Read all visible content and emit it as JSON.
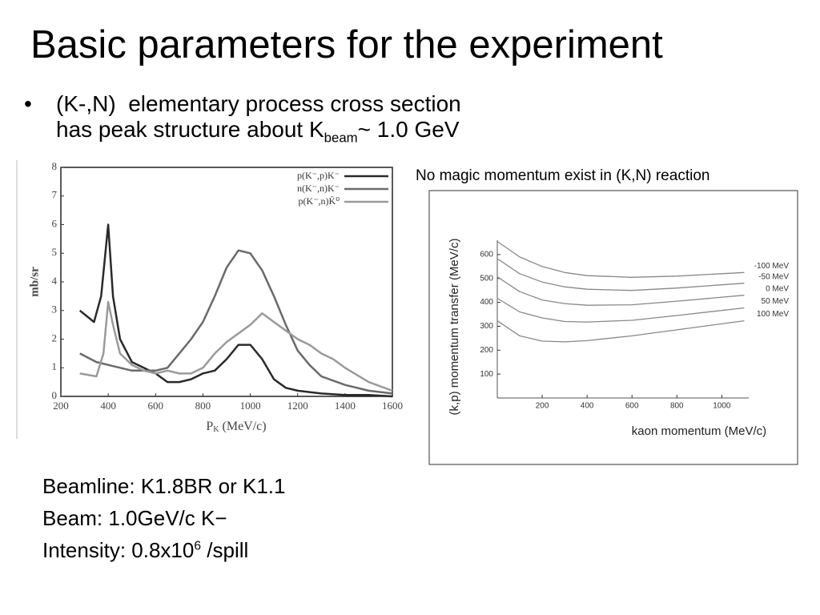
{
  "slide": {
    "title": "Basic parameters for the experiment",
    "bullet_line1": "(K-,N)  elementary process cross section",
    "bullet_line2_parts": [
      "has peak structure about K",
      "beam",
      "~ 1.0 GeV"
    ],
    "info_lines": [
      "Beamline: K1.8BR or K1.1",
      "Beam: 1.0GeV/c K−"
    ],
    "intensity_parts": [
      "Intensity: 0.8x10",
      "6",
      " /spill"
    ]
  },
  "chart_data": [
    {
      "type": "line",
      "ylabel": "mb/sr",
      "xlabel_parts": [
        "P",
        "K",
        " (MeV/c)"
      ],
      "xlim": [
        200,
        1600
      ],
      "ylim": [
        0,
        8
      ],
      "xticks": [
        200,
        400,
        600,
        800,
        1000,
        1200,
        1400,
        1600
      ],
      "yticks": [
        0,
        1,
        2,
        3,
        4,
        5,
        6,
        7,
        8
      ],
      "grid": false,
      "legend": "upper right",
      "series": [
        {
          "name": "p(K⁻,p)K⁻",
          "color": "#2a2a2a",
          "x": [
            280,
            340,
            370,
            400,
            420,
            450,
            500,
            550,
            600,
            650,
            700,
            750,
            800,
            850,
            900,
            950,
            1000,
            1050,
            1100,
            1150,
            1200,
            1300,
            1400,
            1500,
            1600
          ],
          "values": [
            3.0,
            2.6,
            3.5,
            6.0,
            3.5,
            2.0,
            1.2,
            1.0,
            0.8,
            0.5,
            0.5,
            0.6,
            0.8,
            0.9,
            1.3,
            1.8,
            1.8,
            1.3,
            0.6,
            0.3,
            0.2,
            0.1,
            0.05,
            0.05,
            0
          ]
        },
        {
          "name": "n(K⁻,n)K⁻",
          "color": "#6a6a6a",
          "x": [
            280,
            350,
            400,
            500,
            600,
            650,
            700,
            750,
            800,
            850,
            900,
            950,
            1000,
            1050,
            1100,
            1150,
            1200,
            1250,
            1300,
            1400,
            1500,
            1600
          ],
          "values": [
            1.5,
            1.2,
            1.1,
            0.9,
            0.9,
            1.0,
            1.5,
            2.0,
            2.6,
            3.5,
            4.5,
            5.1,
            5.0,
            4.4,
            3.5,
            2.5,
            1.6,
            1.1,
            0.7,
            0.4,
            0.2,
            0.1
          ]
        },
        {
          "name": "p(K⁻,n)K̄⁰",
          "color": "#9a9a9a",
          "x": [
            280,
            350,
            380,
            400,
            420,
            450,
            500,
            550,
            600,
            650,
            700,
            750,
            800,
            850,
            900,
            950,
            1000,
            1050,
            1100,
            1150,
            1200,
            1250,
            1300,
            1350,
            1400,
            1500,
            1600
          ],
          "values": [
            0.8,
            0.7,
            1.5,
            3.3,
            2.5,
            1.5,
            1.1,
            0.9,
            0.8,
            0.9,
            0.8,
            0.8,
            1.0,
            1.5,
            1.9,
            2.2,
            2.5,
            2.9,
            2.6,
            2.3,
            2.0,
            1.8,
            1.5,
            1.3,
            1.0,
            0.5,
            0.2
          ]
        }
      ]
    },
    {
      "type": "line",
      "title": "No magic momentum exist in (K,N) reaction",
      "ylabel": "(k,p) momentum transfer (MeV/c)",
      "xlabel": "kaon momentum (MeV/c)",
      "xlim": [
        0,
        1120
      ],
      "ylim": [
        0,
        660
      ],
      "xticks": [
        200,
        400,
        600,
        800,
        1000
      ],
      "yticks": [
        100,
        200,
        300,
        400,
        500,
        600
      ],
      "grid": false,
      "x": [
        0,
        100,
        200,
        300,
        400,
        600,
        800,
        1100
      ],
      "series": [
        {
          "name": "-100 MeV",
          "color": "#888888",
          "values": [
            655,
            590,
            550,
            525,
            512,
            505,
            510,
            525
          ]
        },
        {
          "name": "-50 MeV",
          "color": "#888888",
          "values": [
            583,
            520,
            485,
            465,
            455,
            450,
            460,
            480
          ]
        },
        {
          "name": "0 MeV",
          "color": "#888888",
          "values": [
            507,
            445,
            410,
            395,
            388,
            390,
            405,
            430
          ]
        },
        {
          "name": "50 MeV",
          "color": "#888888",
          "values": [
            417,
            360,
            335,
            320,
            318,
            325,
            345,
            377
          ]
        },
        {
          "name": "100 MeV",
          "color": "#888888",
          "values": [
            323,
            260,
            238,
            235,
            240,
            260,
            285,
            323
          ]
        }
      ]
    }
  ]
}
